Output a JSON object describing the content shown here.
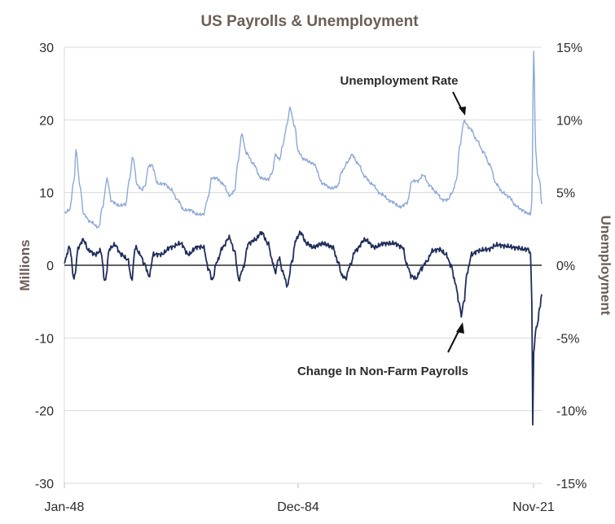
{
  "chart_data": {
    "type": "line",
    "title": "US Payrolls & Unemployment",
    "y_left_label": "Millions",
    "y_right_label": "Unemployment",
    "x_ticks": [
      "Jan-48",
      "Dec-84",
      "Nov-21"
    ],
    "x_range": [
      1948.0,
      2021.83
    ],
    "ylim_left": [
      -30,
      30
    ],
    "ylim_right": [
      -15,
      15
    ],
    "y_left_ticks": [
      "30",
      "20",
      "10",
      "0",
      "-10",
      "-20",
      "-30"
    ],
    "y_right_ticks": [
      "15%",
      "10%",
      "5%",
      "0%",
      "-5%",
      "-10%",
      "-15%"
    ],
    "grid": "horizontal",
    "annotations": [
      {
        "text": "Unemployment Rate"
      },
      {
        "text": "Change In Non-Farm Payrolls"
      }
    ],
    "series": [
      {
        "name": "Unemployment Rate",
        "axis": "right",
        "unit": "percent",
        "color": "#8ca8d6",
        "x": [
          1948.0,
          1948.8,
          1949.5,
          1949.8,
          1950.4,
          1951.0,
          1952.0,
          1953.3,
          1953.9,
          1954.6,
          1955.3,
          1956.5,
          1957.5,
          1958.0,
          1958.6,
          1959.3,
          1960.0,
          1960.5,
          1961.0,
          1961.5,
          1962.5,
          1963.5,
          1964.5,
          1965.5,
          1966.5,
          1967.5,
          1968.5,
          1969.5,
          1970.2,
          1970.8,
          1971.5,
          1972.5,
          1973.6,
          1974.3,
          1974.9,
          1975.4,
          1976.2,
          1977.2,
          1978.4,
          1979.5,
          1980.2,
          1980.6,
          1981.3,
          1981.8,
          1982.4,
          1982.9,
          1983.6,
          1984.2,
          1985.0,
          1986.5,
          1988.0,
          1989.3,
          1990.2,
          1991.0,
          1991.8,
          1992.5,
          1993.4,
          1994.5,
          1995.5,
          1997.0,
          1998.5,
          2000.0,
          2001.0,
          2001.8,
          2002.7,
          2003.5,
          2004.5,
          2005.5,
          2006.5,
          2007.3,
          2008.0,
          2008.6,
          2009.2,
          2009.8,
          2010.8,
          2011.8,
          2012.8,
          2013.8,
          2014.8,
          2015.8,
          2016.8,
          2017.8,
          2018.8,
          2019.5,
          2020.1,
          2020.3,
          2020.6,
          2020.9,
          2021.2,
          2021.5,
          2021.83
        ],
        "values": [
          3.6,
          3.8,
          5.8,
          7.9,
          5.5,
          3.5,
          3.0,
          2.6,
          4.0,
          5.9,
          4.4,
          4.1,
          4.2,
          5.8,
          7.4,
          5.5,
          5.2,
          5.5,
          6.8,
          6.9,
          5.6,
          5.6,
          5.2,
          4.5,
          3.8,
          3.8,
          3.5,
          3.5,
          4.6,
          6.0,
          6.0,
          5.6,
          4.8,
          5.1,
          7.2,
          9.0,
          7.7,
          7.0,
          6.0,
          5.9,
          6.4,
          7.6,
          7.3,
          8.3,
          9.6,
          10.8,
          9.6,
          7.8,
          7.3,
          7.0,
          5.6,
          5.3,
          5.4,
          6.5,
          7.1,
          7.6,
          7.0,
          6.1,
          5.6,
          4.9,
          4.4,
          4.0,
          4.3,
          5.8,
          5.8,
          6.2,
          5.5,
          5.0,
          4.5,
          4.5,
          5.0,
          5.8,
          8.3,
          9.9,
          9.4,
          8.6,
          7.8,
          6.9,
          5.6,
          5.0,
          4.7,
          4.1,
          3.8,
          3.6,
          3.5,
          4.4,
          14.7,
          8.0,
          6.2,
          5.9,
          4.2
        ]
      },
      {
        "name": "Change In Non-Farm Payrolls",
        "axis": "left",
        "unit": "millions",
        "color": "#1f2d5a",
        "x": [
          1948.0,
          1948.8,
          1949.5,
          1950.2,
          1950.9,
          1951.8,
          1952.8,
          1953.6,
          1954.3,
          1955.0,
          1955.8,
          1956.8,
          1957.8,
          1958.4,
          1959.0,
          1959.7,
          1960.4,
          1961.1,
          1961.8,
          1963.0,
          1964.5,
          1966.0,
          1967.2,
          1968.5,
          1969.5,
          1970.3,
          1970.9,
          1971.6,
          1972.5,
          1973.5,
          1974.3,
          1975.0,
          1975.6,
          1976.5,
          1977.5,
          1978.5,
          1979.5,
          1980.2,
          1980.6,
          1981.2,
          1981.8,
          1982.5,
          1983.2,
          1983.8,
          1984.5,
          1985.5,
          1986.5,
          1988.0,
          1989.5,
          1990.3,
          1991.0,
          1991.5,
          1992.2,
          1993.0,
          1994.5,
          1996.0,
          1997.5,
          1999.0,
          2000.3,
          2001.0,
          2001.7,
          2002.4,
          2003.2,
          2004.0,
          2005.0,
          2006.0,
          2007.0,
          2007.8,
          2008.5,
          2009.0,
          2009.4,
          2009.8,
          2010.3,
          2011.0,
          2012.0,
          2013.5,
          2015.0,
          2016.5,
          2018.0,
          2019.0,
          2019.8,
          2020.1,
          2020.3,
          2020.45,
          2020.6,
          2020.9,
          2021.2,
          2021.5,
          2021.83
        ],
        "values": [
          0.5,
          2.5,
          -1.8,
          2.5,
          3.5,
          2.0,
          1.5,
          2.0,
          -2.2,
          2.3,
          2.8,
          1.5,
          0.8,
          -2.0,
          2.5,
          1.5,
          0.2,
          -1.5,
          1.5,
          1.5,
          2.5,
          3.0,
          1.5,
          2.5,
          2.5,
          -0.5,
          -2.0,
          0.5,
          2.5,
          3.8,
          2.0,
          -2.0,
          -0.5,
          3.0,
          3.5,
          4.5,
          3.0,
          0.5,
          -1.0,
          1.0,
          -1.0,
          -2.8,
          0.5,
          3.5,
          4.5,
          3.0,
          2.5,
          3.0,
          2.5,
          0.5,
          -1.5,
          -1.8,
          0.0,
          2.0,
          3.5,
          2.5,
          3.0,
          3.0,
          2.5,
          0.0,
          -1.5,
          -1.8,
          -0.5,
          0.5,
          2.0,
          2.2,
          1.5,
          0.0,
          -2.5,
          -5.0,
          -6.8,
          -5.0,
          -1.0,
          1.5,
          2.0,
          2.2,
          2.8,
          2.6,
          2.4,
          2.2,
          2.2,
          1.5,
          -5.0,
          -22.0,
          -12.0,
          -9.0,
          -8.0,
          -6.0,
          -4.0
        ]
      }
    ]
  }
}
